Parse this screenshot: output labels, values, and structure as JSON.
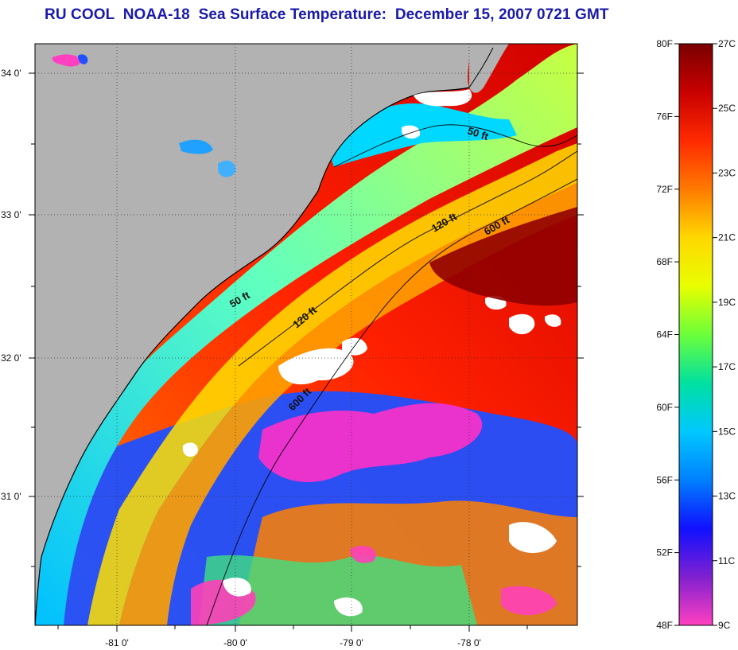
{
  "title": "RU COOL  NOAA-18  Sea Surface Temperature:  December 15, 2007 0721 GMT",
  "map": {
    "lon_ticks": [
      "-81 0'",
      "-80 0'",
      "-79 0'",
      "-78 0'"
    ],
    "lat_ticks": [
      "34 0'",
      "33 0'",
      "32 0'",
      "31 0'"
    ],
    "depth_contours": [
      {
        "label": "50 ft",
        "id": "50ft-north"
      },
      {
        "label": "120 ft",
        "id": "120ft-north"
      },
      {
        "label": "600 ft",
        "id": "600ft-north"
      },
      {
        "label": "50 ft",
        "id": "50ft-south"
      },
      {
        "label": "120 ft",
        "id": "120ft-south"
      },
      {
        "label": "600 ft",
        "id": "600ft-south"
      }
    ]
  },
  "colorbar": {
    "fahrenheit_labels": [
      "80F",
      "76F",
      "72F",
      "68F",
      "64F",
      "60F",
      "56F",
      "52F",
      "48F"
    ],
    "celsius_labels": [
      "27C",
      "25C",
      "23C",
      "21C",
      "19C",
      "17C",
      "15C",
      "13C",
      "11C",
      "9C"
    ],
    "colors": [
      "#7a0000",
      "#c80000",
      "#ff2a00",
      "#ff7a00",
      "#ffd800",
      "#e8ff00",
      "#6cff3a",
      "#00e0a0",
      "#00c8ff",
      "#0080ff",
      "#1010ff",
      "#8020d0",
      "#ff40c0"
    ]
  },
  "colors": {
    "land": "#b2b2b2",
    "coast_line": "#000000",
    "title": "#1a1aa8"
  }
}
